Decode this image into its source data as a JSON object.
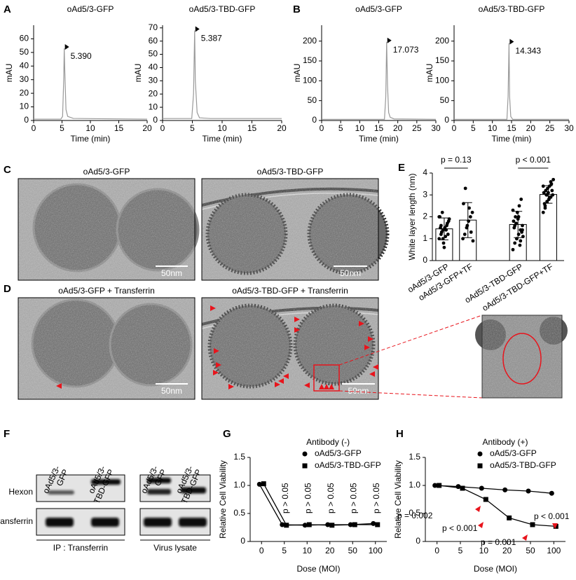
{
  "panel_labels": [
    "A",
    "B",
    "C",
    "D",
    "E",
    "F",
    "G",
    "H"
  ],
  "chart_data": [
    {
      "type": "line",
      "title": "oAd5/3-GFP",
      "xlabel": "Time (min)",
      "ylabel": "mAU",
      "color": "#999999",
      "x": [
        0,
        4.8,
        5.1,
        5.3,
        5.39,
        5.5,
        5.7,
        6.0,
        7,
        20
      ],
      "values": [
        1,
        1,
        3,
        30,
        53,
        35,
        8,
        3,
        1.5,
        1
      ],
      "annotation": "5.390",
      "xlim": [
        0,
        20
      ],
      "xticks": [
        0,
        5,
        10,
        15,
        20
      ],
      "ylim": [
        0,
        70
      ],
      "yticks": [
        0,
        10,
        20,
        30,
        40,
        50,
        60
      ]
    },
    {
      "type": "line",
      "title": "oAd5/3-TBD-GFP",
      "xlabel": "Time (min)",
      "ylabel": "mAU",
      "color": "#999999",
      "x": [
        0,
        4.9,
        5.2,
        5.387,
        5.5,
        5.8,
        6.2,
        8,
        20
      ],
      "values": [
        1.5,
        1.5,
        20,
        68,
        30,
        6,
        2,
        1.5,
        1.5
      ],
      "annotation": "5.387",
      "xlim": [
        0,
        20
      ],
      "xticks": [
        0,
        5,
        10,
        15,
        20
      ],
      "ylim": [
        0,
        72
      ],
      "yticks": [
        0,
        10,
        20,
        30,
        40,
        50,
        60,
        70
      ]
    },
    {
      "type": "line",
      "title": "oAd5/3-GFP",
      "xlabel": "Time (min)",
      "ylabel": "mAU",
      "color": "#999999",
      "x": [
        0,
        16.5,
        16.85,
        17.073,
        17.3,
        17.6,
        18,
        19,
        30
      ],
      "values": [
        3,
        3,
        60,
        198,
        90,
        20,
        8,
        4,
        3
      ],
      "annotation": "17.073",
      "xlim": [
        0,
        30
      ],
      "xticks": [
        0,
        5,
        10,
        15,
        20,
        25,
        30
      ],
      "ylim": [
        0,
        240
      ],
      "yticks": [
        0,
        50,
        100,
        150,
        200
      ]
    },
    {
      "type": "line",
      "title": "oAd5/3-TBD-GFP",
      "xlabel": "Time (min)",
      "ylabel": "mAU",
      "color": "#999999",
      "x": [
        0,
        13.8,
        14.1,
        14.343,
        14.5,
        14.8,
        15.3,
        30
      ],
      "values": [
        3,
        3,
        60,
        195,
        60,
        10,
        3,
        3
      ],
      "annotation": "14.343",
      "xlim": [
        0,
        30
      ],
      "xticks": [
        0,
        5,
        10,
        15,
        20,
        25,
        30
      ],
      "ylim": [
        0,
        240
      ],
      "yticks": [
        0,
        50,
        100,
        150,
        200
      ]
    },
    {
      "type": "bar",
      "ylabel": "White layer length (nm)",
      "color": "#ffffff",
      "categories": [
        "oAd5/3-GFP",
        "oAd5/3-GFP+TF",
        "oAd5/3-TBD-GFP",
        "oAd5/3-TBD-GFP+TF"
      ],
      "values": [
        1.45,
        1.85,
        1.65,
        3.02
      ],
      "errors": [
        0.5,
        0.8,
        0.6,
        0.4
      ],
      "points": [
        [
          1.0,
          1.2,
          1.4,
          1.5,
          1.6,
          1.8,
          2.0,
          1.3,
          0.8,
          1.1,
          1.7,
          1.9,
          1.5,
          2.2,
          0.6,
          1.4,
          1.2,
          2.0,
          1.6,
          1.0
        ],
        [
          1.0,
          1.2,
          1.5,
          1.8,
          2.0,
          2.2,
          2.6,
          3.3,
          1.6,
          2.4,
          1.3,
          0.9
        ],
        [
          0.5,
          0.8,
          1.0,
          1.2,
          1.4,
          1.6,
          1.8,
          2.0,
          2.2,
          2.5,
          2.8,
          1.1,
          1.5,
          1.7,
          1.9,
          0.7,
          1.3,
          2.3,
          1.6,
          1.0,
          2.0,
          0.9,
          1.4
        ],
        [
          2.2,
          2.5,
          2.7,
          2.8,
          2.9,
          3.0,
          3.1,
          3.2,
          3.3,
          3.4,
          3.5,
          3.7,
          2.6,
          3.0,
          3.1,
          2.9,
          3.2,
          3.4,
          2.4,
          3.0,
          2.8,
          3.6
        ]
      ],
      "annotations": [
        "p = 0.13",
        "p < 0.001"
      ],
      "ylim": [
        0,
        4
      ],
      "yticks": [
        0,
        1,
        2,
        3,
        4
      ]
    },
    {
      "type": "line",
      "title": "Antibody (-)",
      "xlabel": "Dose (MOI)",
      "ylabel": "Relative Cell Viability",
      "categories": [
        "0",
        "5",
        "10",
        "20",
        "50",
        "100"
      ],
      "series": [
        {
          "name": "oAd5/3-GFP",
          "marker": "circle",
          "color": "#000000",
          "values": [
            1.02,
            0.3,
            0.29,
            0.3,
            0.3,
            0.32
          ]
        },
        {
          "name": "oAd5/3-TBD-GFP",
          "marker": "square",
          "color": "#000000",
          "values": [
            1.03,
            0.29,
            0.3,
            0.29,
            0.3,
            0.3
          ]
        }
      ],
      "annotations": [
        "p > 0.05",
        "p > 0.05",
        "p > 0.05",
        "p > 0.05",
        "p > 0.05"
      ],
      "ylim": [
        0,
        1.5
      ],
      "yticks": [
        0,
        0.5,
        {
          "value": 1,
          "label": "1.0"
        },
        1.5
      ]
    },
    {
      "type": "line",
      "title": "Antibody (+)",
      "xlabel": "Dose (MOI)",
      "ylabel": "Relative Cell Viability",
      "categories": [
        "0",
        "5",
        "10",
        "20",
        "50",
        "100"
      ],
      "series": [
        {
          "name": "oAd5/3-GFP",
          "marker": "circle",
          "color": "#000000",
          "values": [
            1.0,
            0.98,
            0.95,
            0.92,
            0.9,
            0.86
          ]
        },
        {
          "name": "oAd5/3-TBD-GFP",
          "marker": "square",
          "color": "#000000",
          "values": [
            1.0,
            0.95,
            0.75,
            0.42,
            0.3,
            0.27
          ]
        }
      ],
      "annotations": [
        "p = 0.002",
        "p < 0.001",
        "p = 0.001",
        "p < 0.001"
      ],
      "ylim": [
        0,
        1.5
      ],
      "yticks": [
        0,
        0.5,
        {
          "value": 1,
          "label": "1.0"
        },
        1.5
      ]
    }
  ],
  "micrographs": [
    {
      "title": "oAd5/3-GFP",
      "scale_bar": "50nm"
    },
    {
      "title": "oAd5/3-TBD-GFP",
      "scale_bar": "50nm"
    },
    {
      "title": "oAd5/3-GFP + Transferrin",
      "scale_bar": "50nm"
    },
    {
      "title": "oAd5/3-TBD-GFP + Transferrin",
      "scale_bar": "50nm"
    }
  ],
  "blot": {
    "rows": [
      "Hexon",
      "Transferrin"
    ],
    "panels": [
      {
        "lanes": [
          [
            "oAd5/3-",
            "GFP"
          ],
          [
            "oAd5/3-",
            "TBD-GFP"
          ]
        ],
        "caption": "IP : Transferrin"
      },
      {
        "lanes": [
          [
            "oAd5/3-",
            "GFP"
          ],
          [
            "oAd5/3-",
            "TBD-GFP"
          ]
        ],
        "caption": "Virus lysate"
      }
    ]
  }
}
